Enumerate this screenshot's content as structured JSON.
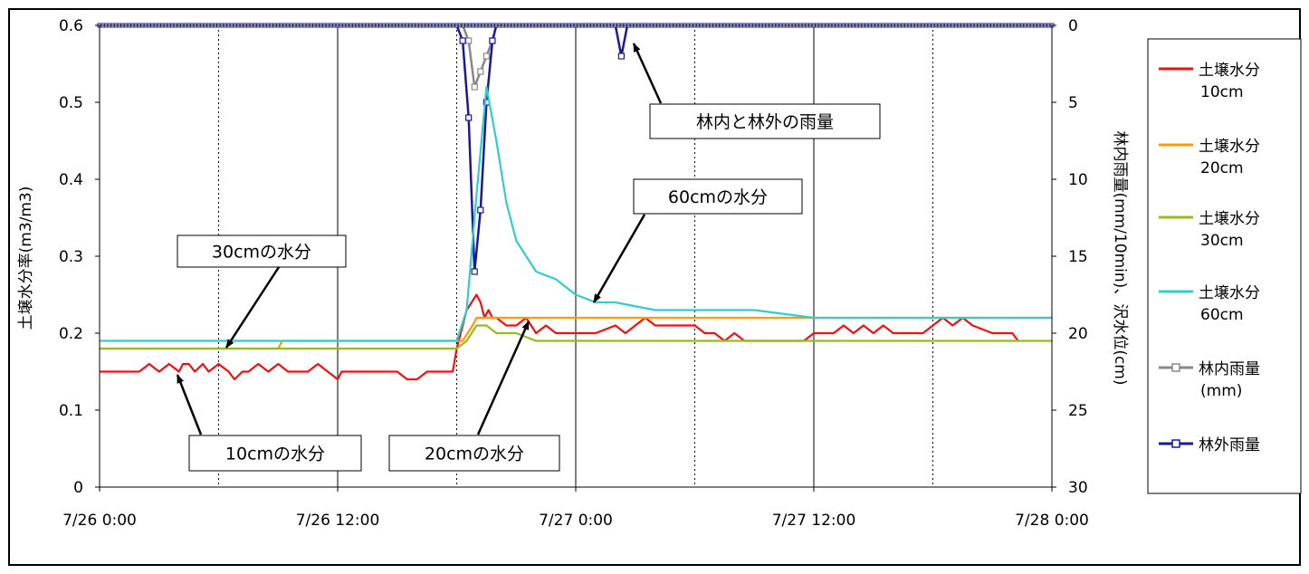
{
  "chart_data": {
    "type": "line",
    "x_ticks": [
      "7/26 0:00",
      "7/26 12:00",
      "7/27 0:00",
      "7/27 12:00",
      "7/28 0:00"
    ],
    "x_range_hours": [
      0,
      48
    ],
    "left_axis": {
      "label": "土壌水分率(m3/m3)",
      "ticks": [
        "0",
        "0.1",
        "0.2",
        "0.3",
        "0.4",
        "0.5",
        "0.6"
      ],
      "range": [
        0,
        0.6
      ]
    },
    "right_axis": {
      "label": "林内雨量(mm/10min)、沢水位(cm)",
      "ticks": [
        "0",
        "5",
        "10",
        "15",
        "20",
        "25",
        "30"
      ],
      "range": [
        0,
        30
      ],
      "inverted": true
    },
    "grid": {
      "major_x": [
        12,
        24,
        36
      ],
      "minor_x_dotted": [
        6,
        18,
        30,
        42
      ]
    },
    "series": [
      {
        "name": "土壌水分 10cm",
        "axis": "left",
        "color": "#ee1111",
        "x": [
          0,
          2,
          2.5,
          3,
          3.5,
          4,
          4.2,
          4.5,
          4.8,
          5.2,
          5.5,
          6,
          6.5,
          6.8,
          7.2,
          7.5,
          8,
          8.5,
          9,
          9.5,
          10,
          10.5,
          11,
          11.5,
          12,
          12.2,
          12.5,
          13,
          13.5,
          14,
          14.5,
          15,
          15.5,
          16,
          16.5,
          17,
          17.5,
          17.8,
          18,
          18.5,
          19,
          19.2,
          19.4,
          19.6,
          19.8,
          20,
          20.5,
          21,
          21.5,
          22,
          22.5,
          23,
          23.5,
          24,
          25,
          26,
          26.5,
          27,
          27.5,
          28,
          28.5,
          29,
          30,
          30.5,
          31,
          31.5,
          32,
          32.5,
          33,
          33.5,
          34,
          35,
          35.5,
          36,
          37,
          37.5,
          38,
          38.5,
          39,
          39.5,
          40,
          40.5,
          41,
          41.5,
          42,
          42.5,
          43,
          43.5,
          44,
          45,
          46,
          46.3
        ],
        "y": [
          0.15,
          0.15,
          0.16,
          0.15,
          0.16,
          0.15,
          0.16,
          0.16,
          0.15,
          0.16,
          0.15,
          0.16,
          0.15,
          0.14,
          0.15,
          0.15,
          0.16,
          0.15,
          0.16,
          0.15,
          0.15,
          0.15,
          0.16,
          0.15,
          0.14,
          0.15,
          0.15,
          0.15,
          0.15,
          0.15,
          0.15,
          0.15,
          0.14,
          0.14,
          0.15,
          0.15,
          0.15,
          0.15,
          0.18,
          0.23,
          0.25,
          0.24,
          0.22,
          0.23,
          0.22,
          0.22,
          0.21,
          0.21,
          0.22,
          0.2,
          0.21,
          0.2,
          0.2,
          0.2,
          0.2,
          0.21,
          0.2,
          0.21,
          0.22,
          0.21,
          0.21,
          0.21,
          0.21,
          0.2,
          0.2,
          0.19,
          0.2,
          0.19,
          0.19,
          0.19,
          0.19,
          0.19,
          0.19,
          0.2,
          0.2,
          0.21,
          0.2,
          0.21,
          0.2,
          0.21,
          0.2,
          0.2,
          0.2,
          0.2,
          0.21,
          0.22,
          0.21,
          0.22,
          0.21,
          0.2,
          0.2,
          0.19
        ]
      },
      {
        "name": "土壌水分 20cm",
        "axis": "left",
        "color": "#ff9900",
        "x": [
          0,
          9,
          9.2,
          18,
          18.3,
          18.8,
          19,
          48
        ],
        "y": [
          0.18,
          0.18,
          0.19,
          0.19,
          0.19,
          0.21,
          0.22,
          0.22
        ]
      },
      {
        "name": "土壌水分 30cm",
        "axis": "left",
        "color": "#99bb22",
        "x": [
          0,
          18,
          18.5,
          19,
          19.5,
          20,
          21,
          22,
          48
        ],
        "y": [
          0.18,
          0.18,
          0.19,
          0.21,
          0.21,
          0.2,
          0.2,
          0.19,
          0.19
        ]
      },
      {
        "name": "土壌水分 60cm",
        "axis": "left",
        "color": "#33cccc",
        "x": [
          0,
          18,
          18.5,
          19,
          19.5,
          20,
          20.5,
          21,
          22,
          23,
          24,
          25,
          26,
          28,
          30,
          33,
          36,
          40,
          48
        ],
        "y": [
          0.19,
          0.19,
          0.23,
          0.38,
          0.52,
          0.45,
          0.37,
          0.32,
          0.28,
          0.27,
          0.25,
          0.24,
          0.24,
          0.23,
          0.23,
          0.23,
          0.22,
          0.22,
          0.22
        ]
      },
      {
        "name": "林内雨量 (mm)",
        "axis": "right",
        "color": "#888888",
        "x": [
          0,
          18,
          18.3,
          18.6,
          18.9,
          19.2,
          19.5,
          19.8,
          20,
          48
        ],
        "y": [
          0,
          0,
          0,
          1,
          4,
          3,
          2,
          1,
          0,
          0
        ]
      },
      {
        "name": "林外雨量",
        "axis": "right",
        "color": "#1a1a99",
        "x": [
          0,
          18,
          18.3,
          18.6,
          18.9,
          19.2,
          19.5,
          19.8,
          20,
          24,
          26,
          26.3,
          26.6,
          48
        ],
        "y": [
          0,
          0,
          1,
          6,
          16,
          12,
          5,
          1,
          0,
          0,
          0,
          2,
          0,
          0
        ]
      }
    ],
    "callouts": [
      {
        "text": "林内と林外の雨量"
      },
      {
        "text": "60cmの水分"
      },
      {
        "text": "30cmの水分"
      },
      {
        "text": "10cmの水分"
      },
      {
        "text": "20cmの水分"
      }
    ],
    "legend": [
      {
        "line1": "土壌水分",
        "line2": "10cm",
        "color": "#ee1111",
        "marker": false
      },
      {
        "line1": "土壌水分",
        "line2": "20cm",
        "color": "#ff9900",
        "marker": false
      },
      {
        "line1": "土壌水分",
        "line2": "30cm",
        "color": "#99bb22",
        "marker": false
      },
      {
        "line1": "土壌水分",
        "line2": "60cm",
        "color": "#33cccc",
        "marker": false
      },
      {
        "line1": "林内雨量",
        "line2": "(mm)",
        "color": "#888888",
        "marker": true
      },
      {
        "line1": "林外雨量",
        "line2": "",
        "color": "#1a1a99",
        "marker": true
      }
    ],
    "legend_position": "right"
  }
}
